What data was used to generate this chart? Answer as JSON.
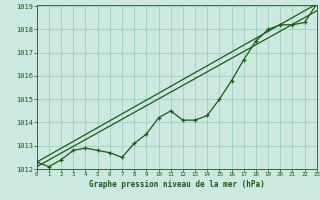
{
  "xlabel": "Graphe pression niveau de la mer (hPa)",
  "hours": [
    0,
    1,
    2,
    3,
    4,
    5,
    6,
    7,
    8,
    9,
    10,
    11,
    12,
    13,
    14,
    15,
    16,
    17,
    18,
    19,
    20,
    21,
    22,
    23
  ],
  "pressure_line": [
    1012.3,
    1012.1,
    1012.4,
    1012.8,
    1012.9,
    1012.8,
    1012.7,
    1012.5,
    1013.1,
    1013.5,
    1014.2,
    1014.5,
    1014.1,
    1014.1,
    1014.3,
    1015.0,
    1015.8,
    1016.7,
    1017.5,
    1018.0,
    1018.2,
    1018.2,
    1018.3,
    1019.1
  ],
  "trend1_y": [
    1012.3,
    1019.1
  ],
  "trend2_y": [
    1012.1,
    1018.8
  ],
  "trend_x": [
    0,
    23
  ],
  "ylim_min": 1012,
  "ylim_max": 1019,
  "xlim_min": 0,
  "xlim_max": 23,
  "bg_color": "#cce8e0",
  "grid_color": "#99ccbb",
  "line_color": "#1a5c1a",
  "label_color": "#1a5c1a",
  "tick_color": "#1a5c1a",
  "yticks": [
    1012,
    1013,
    1014,
    1015,
    1016,
    1017,
    1018,
    1019
  ],
  "xticks": [
    0,
    1,
    2,
    3,
    4,
    5,
    6,
    7,
    8,
    9,
    10,
    11,
    12,
    13,
    14,
    15,
    16,
    17,
    18,
    19,
    20,
    21,
    22,
    23
  ],
  "ytick_labels": [
    "1012",
    "1013",
    "1014",
    "1015",
    "1016",
    "1017",
    "1018",
    "1019"
  ],
  "xtick_labels": [
    "0",
    "1",
    "2",
    "3",
    "4",
    "5",
    "6",
    "7",
    "8",
    "9",
    "10",
    "11",
    "12",
    "13",
    "14",
    "15",
    "16",
    "17",
    "18",
    "19",
    "20",
    "21",
    "22",
    "23"
  ]
}
